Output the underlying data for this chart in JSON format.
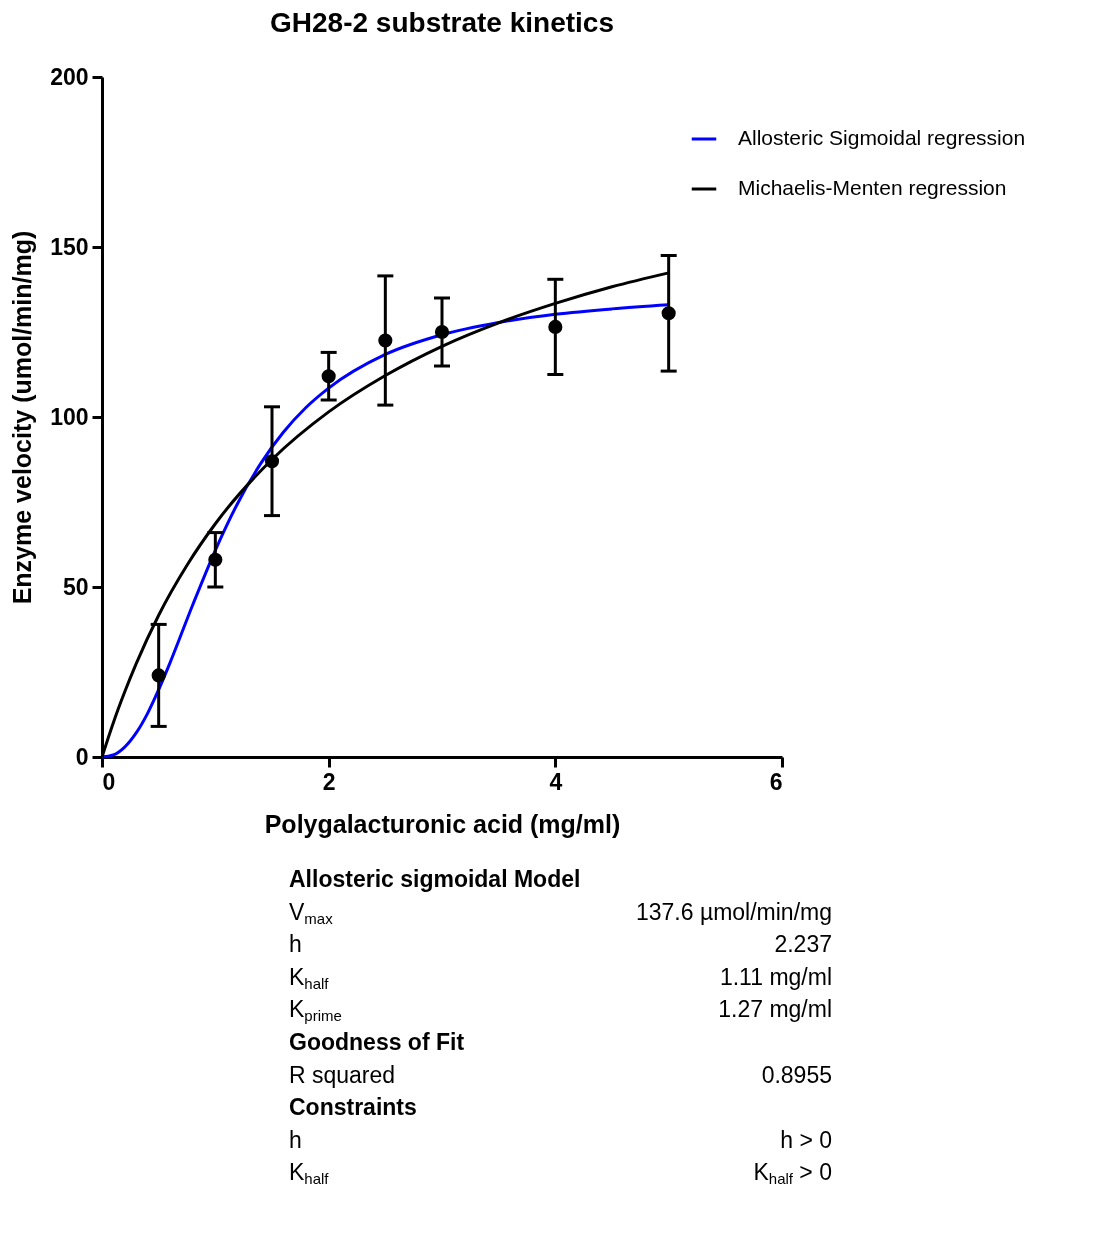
{
  "chart_data": {
    "type": "line",
    "title": "GH28-2 substrate kinetics",
    "xlabel": "Polygalacturonic acid (mg/ml)",
    "ylabel": "Enzyme velocity (umol/min/mg)",
    "xlim": [
      0,
      6
    ],
    "xticks": [
      0,
      2,
      4,
      6
    ],
    "ylim": [
      0,
      200
    ],
    "yticks": [
      0,
      50,
      100,
      150,
      200
    ],
    "grid": false,
    "legend": "top right",
    "line_style": "solid",
    "series": [
      {
        "type": "scatter",
        "color": "#000000",
        "marker": "circle",
        "x": [
          0.5,
          1,
          1.5,
          2,
          2.5,
          3,
          4,
          5
        ],
        "values": [
          24,
          58,
          87,
          112,
          122.5,
          125,
          126.5,
          130.5
        ],
        "errors": [
          15,
          8,
          16,
          7,
          19,
          10,
          14,
          17
        ]
      },
      {
        "name": "Allosteric Sigmoidal regression",
        "color": "#0000ff",
        "x": [
          0,
          0.1,
          0.2,
          0.3,
          0.4,
          0.5,
          0.6,
          0.8,
          1,
          1.2,
          1.4,
          1.6,
          1.8,
          2,
          2.5,
          3,
          3.5,
          4,
          4.5,
          5
        ],
        "values": [
          0,
          0.6,
          2.9,
          7,
          12.7,
          19.8,
          27.7,
          44.7,
          60.8,
          74.8,
          86.3,
          95.5,
          102.8,
          108.5,
          118.4,
          124.2,
          127.8,
          130.2,
          131.8,
          133
        ]
      },
      {
        "name": "Michaelis-Menten regression",
        "color": "#000000",
        "x": [
          0,
          0.1,
          0.2,
          0.3,
          0.5,
          0.75,
          1,
          1.5,
          2,
          2.5,
          3,
          3.5,
          4,
          4.5,
          5
        ],
        "values": [
          0,
          10.1,
          19.1,
          27.3,
          41.7,
          56.4,
          68.6,
          87.5,
          101.5,
          112.2,
          120.8,
          127.7,
          133.4,
          138.3,
          142.4
        ]
      }
    ],
    "annotations": [
      "Allosteric sigmoidal Model",
      "V$_{max}$\t137.6 µmol/min/mg",
      "h\t2.237",
      "K$_{half}$\t1.11 mg/ml",
      "K$_{prime}$\t1.27 mg/ml",
      "Goodness of Fit",
      "R squared\t0.8955",
      "Constraints",
      "h\th > 0",
      "K$_{half}$\tK$_{half}$ > 0"
    ]
  }
}
